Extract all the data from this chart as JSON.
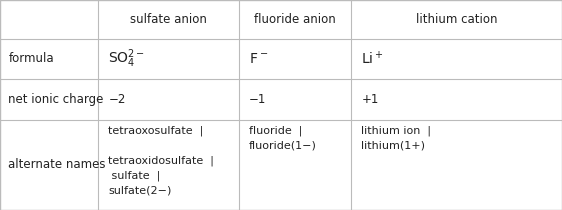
{
  "figsize": [
    5.62,
    2.1
  ],
  "dpi": 100,
  "background_color": "#ffffff",
  "col_headers": [
    "sulfate anion",
    "fluoride anion",
    "lithium cation"
  ],
  "row_headers": [
    "formula",
    "net ionic charge",
    "alternate names"
  ],
  "charges": [
    "−2",
    "−1",
    "+1"
  ],
  "alt_names_col1": "tetraoxosulfate  |\n\ntetraoxidosulfate  |\n sulfate  |\nsulfate(2−)",
  "alt_names_col2": "fluoride  |\nfluoride(1−)",
  "alt_names_col3": "lithium ion  |\nlithium(1+)",
  "font_color": "#222222",
  "line_color": "#bbbbbb",
  "font_size": 8.5,
  "formula_font_size": 10.0
}
